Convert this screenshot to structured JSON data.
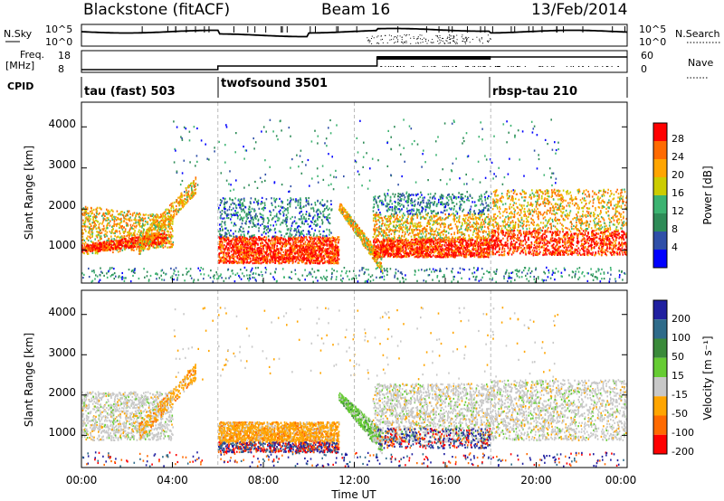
{
  "header": {
    "station": "Blackstone (fitACF)",
    "beam": "Beam 16",
    "date": "13/Feb/2014"
  },
  "noise_panel": {
    "left_label": "N.Sky",
    "right_label": "N.Search",
    "left_ticks": [
      "10^5",
      "10^0"
    ],
    "right_ticks": [
      "10^5",
      "10^0"
    ]
  },
  "freq_panel": {
    "left_label_1": "Freq.",
    "left_label_2": "[MHz]",
    "right_label": "Nave",
    "left_ticks": [
      "18",
      "8"
    ],
    "right_ticks": [
      "60",
      "0"
    ]
  },
  "cpid": {
    "label": "CPID",
    "segments": [
      {
        "name": "tau (fast) 503",
        "start_hour": 0
      },
      {
        "name": "twofsound 3501",
        "start_hour": 6
      },
      {
        "name": "rbsp-tau 210",
        "start_hour": 18
      }
    ]
  },
  "x_axis": {
    "label": "Time UT",
    "ticks": [
      "00:00",
      "04:00",
      "08:00",
      "12:00",
      "16:00",
      "20:00",
      "00:00"
    ]
  },
  "power_panel": {
    "y_label": "Slant Range [km]",
    "y_ticks": [
      "1000",
      "2000",
      "3000",
      "4000"
    ],
    "colorbar_label": "Power [dB]",
    "colorbar_ticks": [
      "28",
      "24",
      "20",
      "16",
      "12",
      "8",
      "4"
    ],
    "colors": [
      "#ff0000",
      "#ff6a00",
      "#ffa500",
      "#cccc00",
      "#3cb371",
      "#2e8b57",
      "#2f4fa8",
      "#0000ff"
    ]
  },
  "velocity_panel": {
    "y_label": "Slant Range [km]",
    "y_ticks": [
      "1000",
      "2000",
      "3000",
      "4000"
    ],
    "colorbar_label": "Velocity [m s⁻¹]",
    "colorbar_ticks": [
      "200",
      "100",
      "50",
      "15",
      "-15",
      "-50",
      "-100",
      "-200"
    ],
    "colors": [
      "#2020a0",
      "#2e6b8a",
      "#3a8a3a",
      "#66cc33",
      "#c8c8c8",
      "#ffa500",
      "#ff6a00",
      "#ff0000"
    ]
  },
  "chart_data": [
    {
      "type": "heatmap",
      "title": "Blackstone (fitACF) Beam 16 13/Feb/2014",
      "xlabel": "Time UT",
      "ylabel": "Slant Range [km]",
      "xlim": [
        0,
        24
      ],
      "ylim": [
        200,
        4600
      ],
      "colorbar": {
        "label": "Power [dB]",
        "range": [
          0,
          32
        ]
      },
      "regions": [
        {
          "t_start": 0.0,
          "t_end": 4.0,
          "range_low": 900,
          "range_high": 2200,
          "power_db": 18
        },
        {
          "t_start": 6.0,
          "t_end": 11.0,
          "range_low": 700,
          "range_high": 1300,
          "power_db": 26
        },
        {
          "t_start": 12.5,
          "t_end": 18.0,
          "range_low": 800,
          "range_high": 1300,
          "power_db": 24
        },
        {
          "t_start": 18.0,
          "t_end": 24.0,
          "range_low": 900,
          "range_high": 2600,
          "power_db": 20
        }
      ]
    },
    {
      "type": "heatmap",
      "title": "Velocity",
      "xlabel": "Time UT",
      "ylabel": "Slant Range [km]",
      "xlim": [
        0,
        24
      ],
      "ylim": [
        200,
        4600
      ],
      "colorbar": {
        "label": "Velocity [m s⁻¹]",
        "range": [
          -250,
          250
        ]
      },
      "regions": [
        {
          "t_start": 0.0,
          "t_end": 4.0,
          "range_low": 900,
          "range_high": 2200,
          "velocity": 0
        },
        {
          "t_start": 6.0,
          "t_end": 11.0,
          "range_low": 700,
          "range_high": 1300,
          "velocity": -50
        },
        {
          "t_start": 11.5,
          "t_end": 13.0,
          "range_low": 500,
          "range_high": 1900,
          "velocity": 60
        },
        {
          "t_start": 13.0,
          "t_end": 24.0,
          "range_low": 900,
          "range_high": 2400,
          "velocity": 0
        }
      ]
    }
  ]
}
